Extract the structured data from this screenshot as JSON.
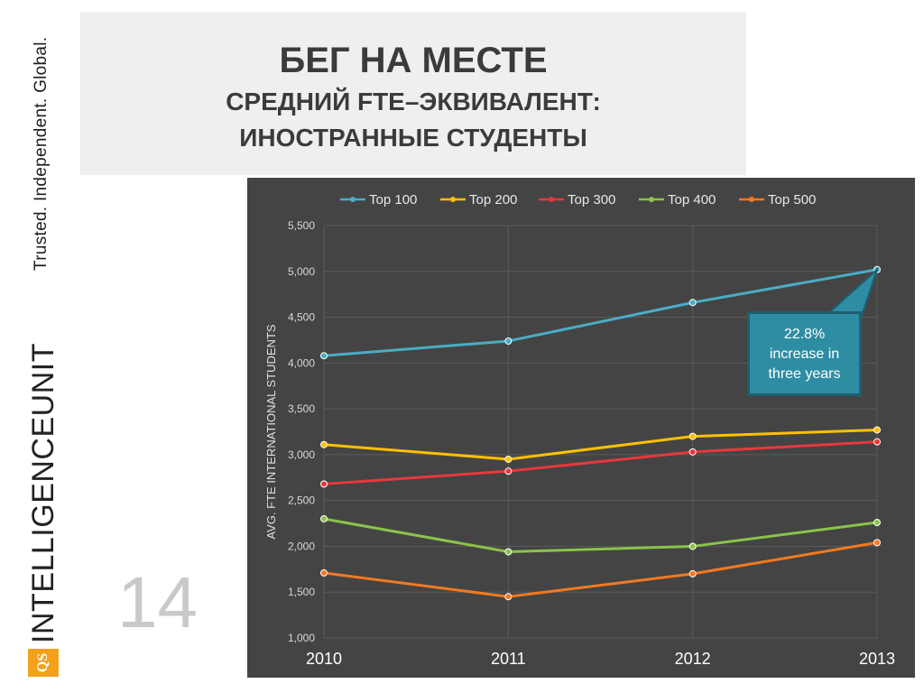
{
  "tagline": "Trusted. Independent. Global.",
  "title": {
    "line1": "БЕГ НА МЕСТЕ",
    "line2": "СРЕДНИЙ  FTE–ЭКВИВАЛЕНТ:",
    "line3": "ИНОСТРАННЫЕ СТУДЕНТЫ"
  },
  "logo": {
    "badge": "QS",
    "part1": "INTELLIGENCE",
    "part2": "UNIT"
  },
  "page_number": "14",
  "callout": {
    "line1": "22.8%",
    "line2": "increase in",
    "line3": "three years"
  },
  "chart_data": {
    "type": "line",
    "ylabel": "AVG. FTE INTERNATIONAL STUDENTS",
    "xlabel": "",
    "x": [
      "2010",
      "2011",
      "2012",
      "2013"
    ],
    "ylim": [
      1000,
      5500
    ],
    "yticks": [
      "1,000",
      "1,500",
      "2,000",
      "2,500",
      "3,000",
      "3,500",
      "4,000",
      "4,500",
      "5,000",
      "5,500"
    ],
    "grid": true,
    "legend_position": "top",
    "series": [
      {
        "name": "Top 100",
        "color": "#4bacc6",
        "values": [
          4080,
          4240,
          4660,
          5020
        ]
      },
      {
        "name": "Top 200",
        "color": "#ffc000",
        "values": [
          3110,
          2950,
          3200,
          3270
        ]
      },
      {
        "name": "Top 300",
        "color": "#e8383d",
        "values": [
          2680,
          2820,
          3030,
          3140
        ]
      },
      {
        "name": "Top 400",
        "color": "#8bc34a",
        "values": [
          2300,
          1940,
          2000,
          2260
        ]
      },
      {
        "name": "Top 500",
        "color": "#f47920",
        "values": [
          1710,
          1450,
          1700,
          2040
        ]
      }
    ]
  }
}
